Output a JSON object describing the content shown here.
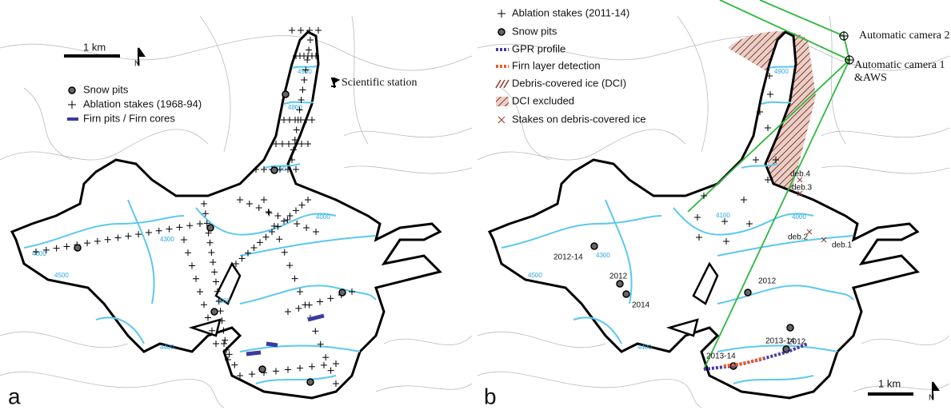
{
  "panels": [
    {
      "label": "a",
      "scale": "1 km",
      "north": "N",
      "legend": [
        "Snow pits",
        "Ablation stakes (1968-94)",
        "Firn pits / Firn cores"
      ],
      "annotations": [
        "Scientific station"
      ],
      "contours": [
        "4500",
        "4600",
        "4300",
        "4200",
        "4400",
        "4900",
        "4800",
        "4100",
        "4000"
      ]
    },
    {
      "label": "b",
      "scale": "1 km",
      "north": "N",
      "legend": [
        "Ablation stakes (2011-14)",
        "Snow pits",
        "GPR profile",
        "Firn layer detection",
        "Debris-covered ice (DCI)",
        "DCI excluded",
        "Stakes on debris-covered ice"
      ],
      "annotations": [
        "Automatic camera 2",
        "Automatic camera 1",
        "&AWS",
        "deb.4",
        "deb.3",
        "deb.2",
        "deb.1",
        "2012-14",
        "2012",
        "2014",
        "2012",
        "2013-14",
        "2013-14",
        "2012"
      ],
      "contours": [
        "4500",
        "4300",
        "4400",
        "4100",
        "4900",
        "4000"
      ]
    }
  ]
}
